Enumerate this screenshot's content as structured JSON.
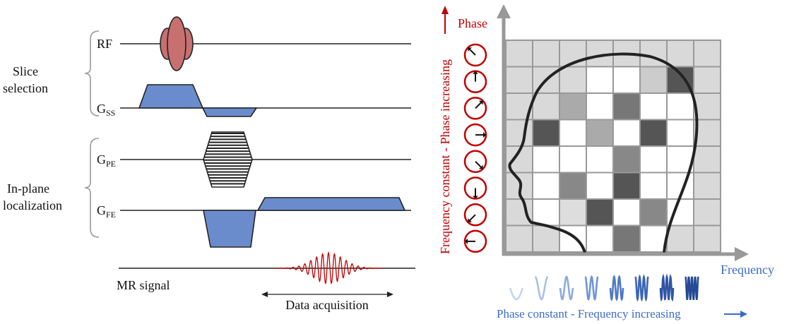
{
  "pulse_sequence": {
    "labels": {
      "rf": "RF",
      "gss": {
        "main": "G",
        "sub": "SS"
      },
      "gpe": {
        "main": "G",
        "sub": "PE"
      },
      "gfe": {
        "main": "G",
        "sub": "FE"
      },
      "mr_signal": "MR signal"
    },
    "groups": {
      "slice_selection": [
        "Slice",
        "selection"
      ],
      "in_plane": [
        "In-plane",
        "localization"
      ]
    },
    "data_acquisition": "Data acquisition"
  },
  "kspace": {
    "phase_label": "Phase",
    "frequency_label": "Frequency",
    "phase_axis_caption": "Frequency constant - Phase increasing",
    "frequency_axis_caption": "Phase constant - Frequency increasing"
  }
}
